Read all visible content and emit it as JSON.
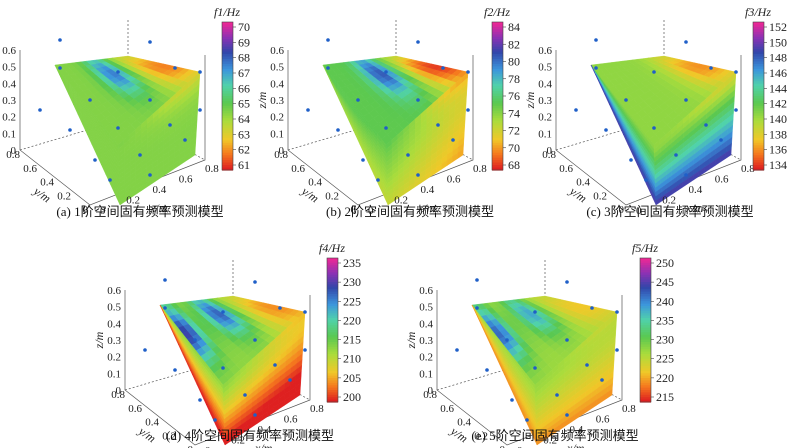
{
  "chart_data": [
    {
      "type": "heatmap",
      "caption": "(a) 1阶空间固有频率预测模型",
      "colorbar_label": "f1/Hz",
      "colorbar_ticks": [
        "70",
        "69",
        "68",
        "67",
        "66",
        "65",
        "64",
        "63",
        "62",
        "61"
      ],
      "clim": [
        61,
        70
      ],
      "xlabel": "x/m",
      "ylabel": "y/m",
      "zlabel": "z/m",
      "x_ticks": [
        "0",
        "0.2",
        "0.4",
        "0.6",
        "0.8"
      ],
      "y_ticks": [
        "0",
        "0.2",
        "0.4",
        "0.6",
        "0.8"
      ],
      "z_ticks": [
        "0",
        "0.1",
        "0.2",
        "0.3",
        "0.4",
        "0.5",
        "0.6"
      ],
      "field": {
        "base": 64.5,
        "top_blob": 67.5,
        "right_hot": 62.0,
        "left_hot": 0,
        "bottom": 0,
        "diag": 0
      }
    },
    {
      "type": "heatmap",
      "caption": "(b) 2阶空间固有频率预测模型",
      "colorbar_label": "f2/Hz",
      "colorbar_ticks": [
        "84",
        "82",
        "80",
        "78",
        "76",
        "74",
        "72",
        "70",
        "68"
      ],
      "clim": [
        67,
        85
      ],
      "xlabel": "x/m",
      "ylabel": "y/m",
      "zlabel": "z/m",
      "x_ticks": [
        "0",
        "0.2",
        "0.4",
        "0.6",
        "0.8"
      ],
      "y_ticks": [
        "0",
        "0.2",
        "0.4",
        "0.6",
        "0.8"
      ],
      "z_ticks": [
        "0",
        "0.1",
        "0.2",
        "0.3",
        "0.4",
        "0.5",
        "0.6"
      ],
      "field": {
        "base": 75.0,
        "top_blob": 81.0,
        "right_hot": 69.0,
        "left_hot": 0,
        "bottom": 0,
        "diag": 71.0
      }
    },
    {
      "type": "heatmap",
      "caption": "(c) 3阶空间固有频率预测模型",
      "colorbar_label": "f3/Hz",
      "colorbar_ticks": [
        "152",
        "150",
        "148",
        "146",
        "144",
        "142",
        "140",
        "138",
        "136",
        "134"
      ],
      "clim": [
        133,
        152
      ],
      "xlabel": "x/m",
      "ylabel": "y/m",
      "zlabel": "z/m",
      "x_ticks": [
        "0",
        "0.2",
        "0.4",
        "0.6",
        "0.8"
      ],
      "y_ticks": [
        "0",
        "0.2",
        "0.4",
        "0.6",
        "0.8"
      ],
      "z_ticks": [
        "0",
        "0.1",
        "0.2",
        "0.3",
        "0.4",
        "0.5",
        "0.6"
      ],
      "field": {
        "base": 140.0,
        "top_blob": 0,
        "right_hot": 135.5,
        "left_hot": 0,
        "bottom": 149.0,
        "diag": 0
      }
    },
    {
      "type": "heatmap",
      "caption": "(d) 4阶空间固有频率预测模型",
      "colorbar_label": "f4/Hz",
      "colorbar_ticks": [
        "235",
        "230",
        "225",
        "220",
        "215",
        "210",
        "205",
        "200"
      ],
      "clim": [
        199,
        237
      ],
      "xlabel": "x/m",
      "ylabel": "y/m",
      "zlabel": "z/m",
      "x_ticks": [
        "0",
        "0.2",
        "0.4",
        "0.6",
        "0.8"
      ],
      "y_ticks": [
        "0",
        "0.2",
        "0.4",
        "0.6",
        "0.8"
      ],
      "z_ticks": [
        "0",
        "0.1",
        "0.2",
        "0.3",
        "0.4",
        "0.5",
        "0.6"
      ],
      "field": {
        "base": 213.0,
        "top_blob": 228.0,
        "right_hot": 206.0,
        "left_hot": 230.0,
        "bottom": 202.0,
        "diag": 207.0
      }
    },
    {
      "type": "heatmap",
      "caption": "(e) 5阶空间固有频率预测模型",
      "colorbar_label": "f5/Hz",
      "colorbar_ticks": [
        "250",
        "245",
        "240",
        "235",
        "230",
        "225",
        "220",
        "215"
      ],
      "clim": [
        212,
        252
      ],
      "xlabel": "x/m",
      "ylabel": "y/m",
      "zlabel": "z/m",
      "x_ticks": [
        "0",
        "0.2",
        "0.4",
        "0.6",
        "0.8"
      ],
      "y_ticks": [
        "0",
        "0.2",
        "0.4",
        "0.6",
        "0.8"
      ],
      "z_ticks": [
        "0",
        "0.1",
        "0.2",
        "0.3",
        "0.4",
        "0.5",
        "0.6"
      ],
      "field": {
        "base": 226.0,
        "top_blob": 238.0,
        "right_hot": 220.0,
        "left_hot": 242.0,
        "bottom": 217.0,
        "diag": 0
      }
    }
  ]
}
